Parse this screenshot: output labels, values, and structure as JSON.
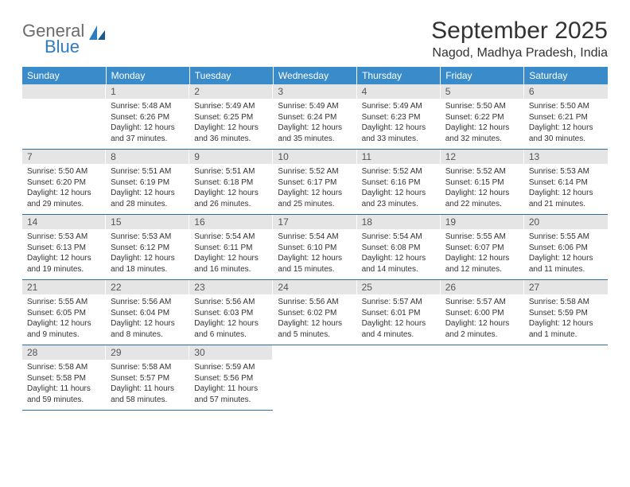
{
  "brand": {
    "text1": "General",
    "text2": "Blue"
  },
  "title": "September 2025",
  "location": "Nagod, Madhya Pradesh, India",
  "colors": {
    "header_bg": "#3a8bc9",
    "header_text": "#ffffff",
    "daynum_bg": "#e5e5e5",
    "border": "#2e6da4",
    "logo_gray": "#6b6b6b",
    "logo_blue": "#2e7cc0"
  },
  "fonts": {
    "title_size": 30,
    "location_size": 16,
    "header_size": 12,
    "cell_size": 10
  },
  "day_headers": [
    "Sunday",
    "Monday",
    "Tuesday",
    "Wednesday",
    "Thursday",
    "Friday",
    "Saturday"
  ],
  "weeks": [
    [
      {
        "num": "",
        "sunrise": "",
        "sunset": "",
        "daylight": ""
      },
      {
        "num": "1",
        "sunrise": "Sunrise: 5:48 AM",
        "sunset": "Sunset: 6:26 PM",
        "daylight": "Daylight: 12 hours and 37 minutes."
      },
      {
        "num": "2",
        "sunrise": "Sunrise: 5:49 AM",
        "sunset": "Sunset: 6:25 PM",
        "daylight": "Daylight: 12 hours and 36 minutes."
      },
      {
        "num": "3",
        "sunrise": "Sunrise: 5:49 AM",
        "sunset": "Sunset: 6:24 PM",
        "daylight": "Daylight: 12 hours and 35 minutes."
      },
      {
        "num": "4",
        "sunrise": "Sunrise: 5:49 AM",
        "sunset": "Sunset: 6:23 PM",
        "daylight": "Daylight: 12 hours and 33 minutes."
      },
      {
        "num": "5",
        "sunrise": "Sunrise: 5:50 AM",
        "sunset": "Sunset: 6:22 PM",
        "daylight": "Daylight: 12 hours and 32 minutes."
      },
      {
        "num": "6",
        "sunrise": "Sunrise: 5:50 AM",
        "sunset": "Sunset: 6:21 PM",
        "daylight": "Daylight: 12 hours and 30 minutes."
      }
    ],
    [
      {
        "num": "7",
        "sunrise": "Sunrise: 5:50 AM",
        "sunset": "Sunset: 6:20 PM",
        "daylight": "Daylight: 12 hours and 29 minutes."
      },
      {
        "num": "8",
        "sunrise": "Sunrise: 5:51 AM",
        "sunset": "Sunset: 6:19 PM",
        "daylight": "Daylight: 12 hours and 28 minutes."
      },
      {
        "num": "9",
        "sunrise": "Sunrise: 5:51 AM",
        "sunset": "Sunset: 6:18 PM",
        "daylight": "Daylight: 12 hours and 26 minutes."
      },
      {
        "num": "10",
        "sunrise": "Sunrise: 5:52 AM",
        "sunset": "Sunset: 6:17 PM",
        "daylight": "Daylight: 12 hours and 25 minutes."
      },
      {
        "num": "11",
        "sunrise": "Sunrise: 5:52 AM",
        "sunset": "Sunset: 6:16 PM",
        "daylight": "Daylight: 12 hours and 23 minutes."
      },
      {
        "num": "12",
        "sunrise": "Sunrise: 5:52 AM",
        "sunset": "Sunset: 6:15 PM",
        "daylight": "Daylight: 12 hours and 22 minutes."
      },
      {
        "num": "13",
        "sunrise": "Sunrise: 5:53 AM",
        "sunset": "Sunset: 6:14 PM",
        "daylight": "Daylight: 12 hours and 21 minutes."
      }
    ],
    [
      {
        "num": "14",
        "sunrise": "Sunrise: 5:53 AM",
        "sunset": "Sunset: 6:13 PM",
        "daylight": "Daylight: 12 hours and 19 minutes."
      },
      {
        "num": "15",
        "sunrise": "Sunrise: 5:53 AM",
        "sunset": "Sunset: 6:12 PM",
        "daylight": "Daylight: 12 hours and 18 minutes."
      },
      {
        "num": "16",
        "sunrise": "Sunrise: 5:54 AM",
        "sunset": "Sunset: 6:11 PM",
        "daylight": "Daylight: 12 hours and 16 minutes."
      },
      {
        "num": "17",
        "sunrise": "Sunrise: 5:54 AM",
        "sunset": "Sunset: 6:10 PM",
        "daylight": "Daylight: 12 hours and 15 minutes."
      },
      {
        "num": "18",
        "sunrise": "Sunrise: 5:54 AM",
        "sunset": "Sunset: 6:08 PM",
        "daylight": "Daylight: 12 hours and 14 minutes."
      },
      {
        "num": "19",
        "sunrise": "Sunrise: 5:55 AM",
        "sunset": "Sunset: 6:07 PM",
        "daylight": "Daylight: 12 hours and 12 minutes."
      },
      {
        "num": "20",
        "sunrise": "Sunrise: 5:55 AM",
        "sunset": "Sunset: 6:06 PM",
        "daylight": "Daylight: 12 hours and 11 minutes."
      }
    ],
    [
      {
        "num": "21",
        "sunrise": "Sunrise: 5:55 AM",
        "sunset": "Sunset: 6:05 PM",
        "daylight": "Daylight: 12 hours and 9 minutes."
      },
      {
        "num": "22",
        "sunrise": "Sunrise: 5:56 AM",
        "sunset": "Sunset: 6:04 PM",
        "daylight": "Daylight: 12 hours and 8 minutes."
      },
      {
        "num": "23",
        "sunrise": "Sunrise: 5:56 AM",
        "sunset": "Sunset: 6:03 PM",
        "daylight": "Daylight: 12 hours and 6 minutes."
      },
      {
        "num": "24",
        "sunrise": "Sunrise: 5:56 AM",
        "sunset": "Sunset: 6:02 PM",
        "daylight": "Daylight: 12 hours and 5 minutes."
      },
      {
        "num": "25",
        "sunrise": "Sunrise: 5:57 AM",
        "sunset": "Sunset: 6:01 PM",
        "daylight": "Daylight: 12 hours and 4 minutes."
      },
      {
        "num": "26",
        "sunrise": "Sunrise: 5:57 AM",
        "sunset": "Sunset: 6:00 PM",
        "daylight": "Daylight: 12 hours and 2 minutes."
      },
      {
        "num": "27",
        "sunrise": "Sunrise: 5:58 AM",
        "sunset": "Sunset: 5:59 PM",
        "daylight": "Daylight: 12 hours and 1 minute."
      }
    ],
    [
      {
        "num": "28",
        "sunrise": "Sunrise: 5:58 AM",
        "sunset": "Sunset: 5:58 PM",
        "daylight": "Daylight: 11 hours and 59 minutes."
      },
      {
        "num": "29",
        "sunrise": "Sunrise: 5:58 AM",
        "sunset": "Sunset: 5:57 PM",
        "daylight": "Daylight: 11 hours and 58 minutes."
      },
      {
        "num": "30",
        "sunrise": "Sunrise: 5:59 AM",
        "sunset": "Sunset: 5:56 PM",
        "daylight": "Daylight: 11 hours and 57 minutes."
      },
      {
        "num": "",
        "sunrise": "",
        "sunset": "",
        "daylight": ""
      },
      {
        "num": "",
        "sunrise": "",
        "sunset": "",
        "daylight": ""
      },
      {
        "num": "",
        "sunrise": "",
        "sunset": "",
        "daylight": ""
      },
      {
        "num": "",
        "sunrise": "",
        "sunset": "",
        "daylight": ""
      }
    ]
  ]
}
